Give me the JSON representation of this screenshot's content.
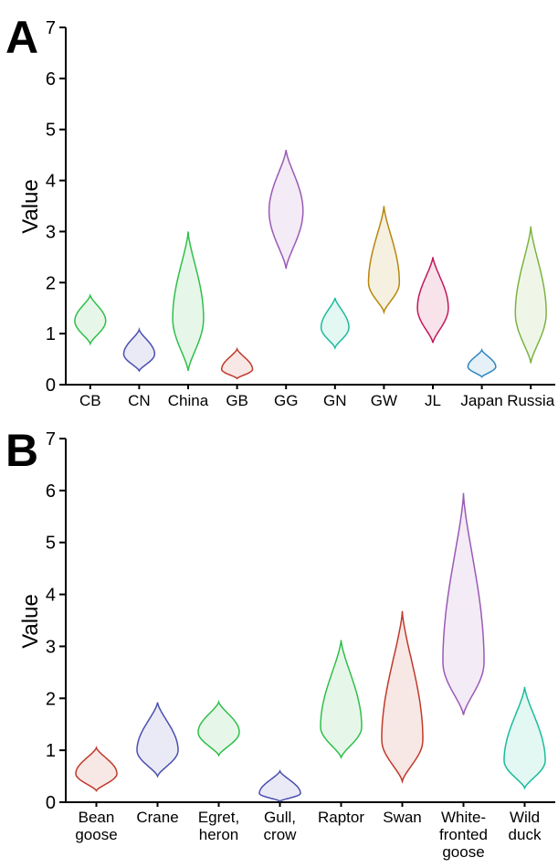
{
  "chart_data": [
    {
      "type": "violin",
      "panel_label": "A",
      "ylabel": "Value",
      "ylim": [
        0,
        7
      ],
      "yticks": [
        0,
        1,
        2,
        3,
        4,
        5,
        6,
        7
      ],
      "grid": false,
      "categories": [
        {
          "label": "CB",
          "min": 0.8,
          "max": 1.75,
          "mode": 1.25,
          "width": 0.3,
          "color": "#2fbf4a"
        },
        {
          "label": "CN",
          "min": 0.27,
          "max": 1.08,
          "mode": 0.6,
          "width": 0.3,
          "color": "#4a4fb0"
        },
        {
          "label": "China",
          "min": 0.27,
          "max": 3.0,
          "mode": 1.3,
          "width": 0.3,
          "color": "#2fbf4a"
        },
        {
          "label": "GB",
          "min": 0.12,
          "max": 0.7,
          "mode": 0.3,
          "width": 0.3,
          "color": "#c0392b"
        },
        {
          "label": "GG",
          "min": 2.27,
          "max": 4.6,
          "mode": 3.4,
          "width": 0.33,
          "color": "#9b59b6"
        },
        {
          "label": "GN",
          "min": 0.72,
          "max": 1.7,
          "mode": 1.12,
          "width": 0.27,
          "color": "#1abc9c"
        },
        {
          "label": "GW",
          "min": 1.42,
          "max": 3.5,
          "mode": 2.0,
          "width": 0.3,
          "color": "#b8860b"
        },
        {
          "label": "JL",
          "min": 0.82,
          "max": 2.5,
          "mode": 1.5,
          "width": 0.3,
          "color": "#c2185b"
        },
        {
          "label": "Japan",
          "min": 0.15,
          "max": 0.68,
          "mode": 0.35,
          "width": 0.27,
          "color": "#2e86c1"
        },
        {
          "label": "Russia",
          "min": 0.42,
          "max": 3.1,
          "mode": 1.4,
          "width": 0.3,
          "color": "#7cb342"
        }
      ]
    },
    {
      "type": "violin",
      "panel_label": "B",
      "ylabel": "Value",
      "ylim": [
        0,
        7
      ],
      "yticks": [
        0,
        1,
        2,
        3,
        4,
        5,
        6,
        7
      ],
      "grid": false,
      "categories": [
        {
          "label": "Bean goose",
          "lines": [
            "Bean",
            "goose"
          ],
          "min": 0.22,
          "max": 1.05,
          "mode": 0.55,
          "width": 0.32,
          "color": "#c0392b"
        },
        {
          "label": "Crane",
          "lines": [
            "Crane"
          ],
          "min": 0.5,
          "max": 1.92,
          "mode": 1.0,
          "width": 0.32,
          "color": "#4a4fb0"
        },
        {
          "label": "Egret, heron",
          "lines": [
            "Egret,",
            "heron"
          ],
          "min": 0.9,
          "max": 1.93,
          "mode": 1.35,
          "width": 0.32,
          "color": "#2fbf4a"
        },
        {
          "label": "Gull, crow",
          "lines": [
            "Gull,",
            "crow"
          ],
          "min": 0.02,
          "max": 0.6,
          "mode": 0.17,
          "width": 0.32,
          "color": "#4a4fb0"
        },
        {
          "label": "Raptor",
          "lines": [
            "Raptor"
          ],
          "min": 0.86,
          "max": 3.12,
          "mode": 1.45,
          "width": 0.32,
          "color": "#2fbf4a"
        },
        {
          "label": "Swan",
          "lines": [
            "Swan"
          ],
          "min": 0.4,
          "max": 3.68,
          "mode": 1.2,
          "width": 0.32,
          "color": "#c0392b"
        },
        {
          "label": "White-fronted goose",
          "lines": [
            "White-",
            "fronted",
            "goose"
          ],
          "min": 1.68,
          "max": 5.95,
          "mode": 2.7,
          "width": 0.32,
          "color": "#9b59b6"
        },
        {
          "label": "Wild duck",
          "lines": [
            "Wild",
            "duck"
          ],
          "min": 0.27,
          "max": 2.22,
          "mode": 0.8,
          "width": 0.32,
          "color": "#1abc9c"
        }
      ]
    }
  ]
}
